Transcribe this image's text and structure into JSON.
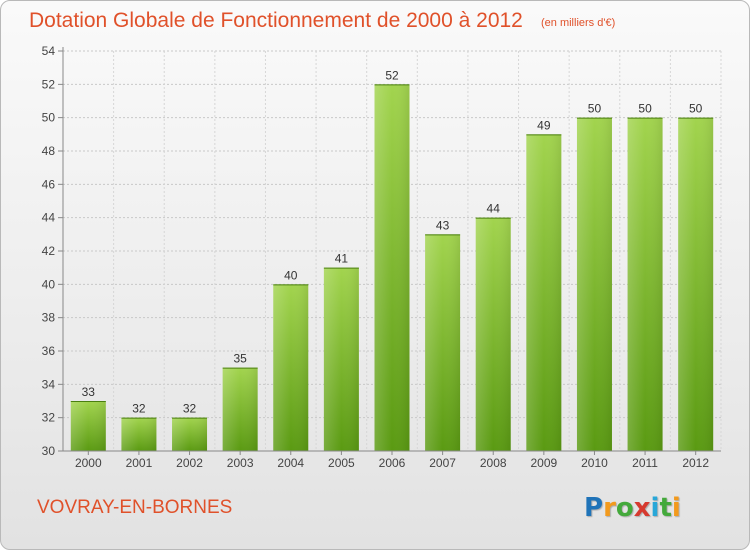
{
  "header": {
    "title": "Dotation Globale de Fonctionnement de 2000 à 2012",
    "subtitle": "(en milliers d'€)"
  },
  "footer": {
    "commune": "VOVRAY-EN-BORNES",
    "logo_text": "Proxiti"
  },
  "colors": {
    "title": "#e0512a",
    "bar_top": "#9fd14b",
    "bar_bottom": "#5a9a12"
  },
  "chart_data": {
    "type": "bar",
    "categories": [
      "2000",
      "2001",
      "2002",
      "2003",
      "2004",
      "2005",
      "2006",
      "2007",
      "2008",
      "2009",
      "2010",
      "2011",
      "2012"
    ],
    "values": [
      33,
      32,
      32,
      35,
      40,
      41,
      52,
      43,
      44,
      49,
      50,
      50,
      50
    ],
    "title": "Dotation Globale de Fonctionnement de 2000 à 2012",
    "subtitle": "(en milliers d'€)",
    "ylim": [
      30,
      54
    ],
    "yticks": [
      30,
      32,
      34,
      36,
      38,
      40,
      42,
      44,
      46,
      48,
      50,
      52,
      54
    ],
    "grid": true,
    "legend": "none"
  }
}
